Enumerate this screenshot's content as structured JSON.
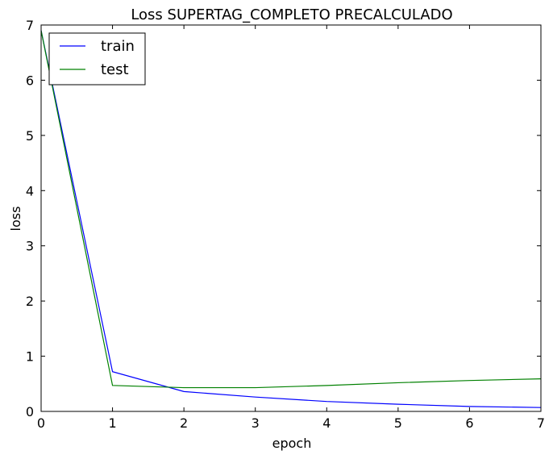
{
  "chart_data": {
    "type": "line",
    "title": "Loss SUPERTAG_COMPLETO PRECALCULADO",
    "xlabel": "epoch",
    "ylabel": "loss",
    "xlim": [
      0,
      7
    ],
    "ylim": [
      0,
      7
    ],
    "xticks": [
      "0",
      "1",
      "2",
      "3",
      "4",
      "5",
      "6",
      "7"
    ],
    "yticks": [
      "0",
      "1",
      "2",
      "3",
      "4",
      "5",
      "6",
      "7"
    ],
    "grid": false,
    "legend_position": "top-left",
    "x": [
      0,
      1,
      2,
      3,
      4,
      5,
      6,
      7
    ],
    "series": [
      {
        "name": "train",
        "color": "#0000ff",
        "values": [
          6.9,
          0.72,
          0.36,
          0.26,
          0.18,
          0.13,
          0.09,
          0.07
        ]
      },
      {
        "name": "test",
        "color": "#008000",
        "values": [
          6.9,
          0.47,
          0.43,
          0.43,
          0.47,
          0.52,
          0.56,
          0.59
        ]
      }
    ]
  }
}
